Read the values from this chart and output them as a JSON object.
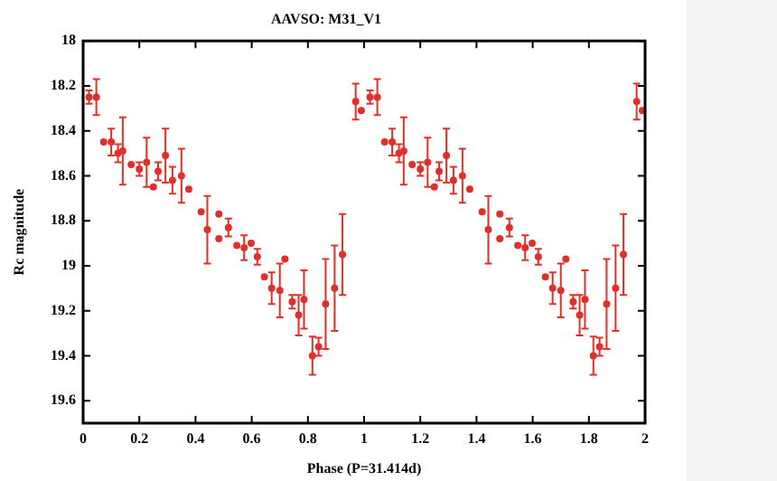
{
  "chart_data": {
    "type": "scatter",
    "title": "AAVSO: M31_V1",
    "xlabel": "Phase (P=31.414d)",
    "ylabel": "Rc magnitude",
    "xlim": [
      0,
      2
    ],
    "xticks": [
      0,
      0.2,
      0.4,
      0.6,
      0.8,
      1,
      1.2,
      1.4,
      1.6,
      1.8,
      2
    ],
    "ylim": [
      19.7,
      18
    ],
    "yticks": [
      18,
      18.2,
      18.4,
      18.6,
      18.8,
      19,
      19.2,
      19.4,
      19.6
    ],
    "grid": false,
    "legend": false,
    "marker": "circle",
    "series": [
      {
        "color": "#e0302a",
        "x": [
          0.021,
          0.047,
          0.073,
          0.1,
          0.124,
          0.141,
          0.171,
          0.2,
          0.226,
          0.25,
          0.267,
          0.293,
          0.318,
          0.35,
          0.376,
          0.42,
          0.442,
          0.483,
          0.483,
          0.517,
          0.547,
          0.573,
          0.598,
          0.62,
          0.645,
          0.671,
          0.7,
          0.718,
          0.744,
          0.767,
          0.786,
          0.816,
          0.838,
          0.863,
          0.895,
          0.923,
          0.97,
          0.99,
          1.021,
          1.047,
          1.073,
          1.1,
          1.124,
          1.141,
          1.171,
          1.2,
          1.226,
          1.25,
          1.267,
          1.293,
          1.318,
          1.35,
          1.376,
          1.42,
          1.442,
          1.483,
          1.483,
          1.517,
          1.547,
          1.573,
          1.598,
          1.62,
          1.645,
          1.671,
          1.7,
          1.718,
          1.744,
          1.767,
          1.786,
          1.816,
          1.838,
          1.863,
          1.895,
          1.923,
          1.97,
          1.99
        ],
        "values": [
          18.25,
          18.25,
          18.45,
          18.45,
          18.5,
          18.49,
          18.55,
          18.57,
          18.54,
          18.65,
          18.58,
          18.51,
          18.62,
          18.6,
          18.66,
          18.76,
          18.84,
          18.77,
          18.88,
          18.83,
          18.91,
          18.92,
          18.9,
          18.96,
          19.05,
          19.1,
          19.11,
          18.97,
          19.16,
          19.22,
          19.15,
          19.4,
          19.36,
          19.17,
          19.1,
          18.95,
          18.27,
          18.31,
          18.25,
          18.25,
          18.45,
          18.45,
          18.5,
          18.49,
          18.55,
          18.57,
          18.54,
          18.65,
          18.58,
          18.51,
          18.62,
          18.6,
          18.66,
          18.76,
          18.84,
          18.77,
          18.88,
          18.83,
          18.91,
          18.92,
          18.9,
          18.96,
          19.05,
          19.1,
          19.11,
          18.97,
          19.16,
          19.22,
          19.15,
          19.4,
          19.36,
          19.17,
          19.1,
          18.95,
          18.27,
          18.31
        ],
        "errors": [
          0.03,
          0.08,
          null,
          0.06,
          0.04,
          0.15,
          null,
          0.03,
          0.11,
          null,
          0.04,
          0.12,
          0.06,
          0.12,
          null,
          null,
          0.15,
          null,
          null,
          0.04,
          null,
          0.055,
          null,
          0.035,
          null,
          0.07,
          0.12,
          null,
          0.03,
          0.09,
          0.13,
          0.085,
          0.04,
          0.2,
          0.19,
          0.18,
          0.08,
          null,
          0.03,
          0.08,
          null,
          0.06,
          0.04,
          0.15,
          null,
          0.03,
          0.11,
          null,
          0.04,
          0.12,
          0.06,
          0.12,
          null,
          null,
          0.15,
          null,
          null,
          0.04,
          null,
          0.055,
          null,
          0.035,
          null,
          0.07,
          0.12,
          null,
          0.03,
          0.09,
          0.13,
          0.085,
          0.04,
          0.2,
          0.19,
          0.18,
          0.08,
          null
        ]
      }
    ]
  }
}
